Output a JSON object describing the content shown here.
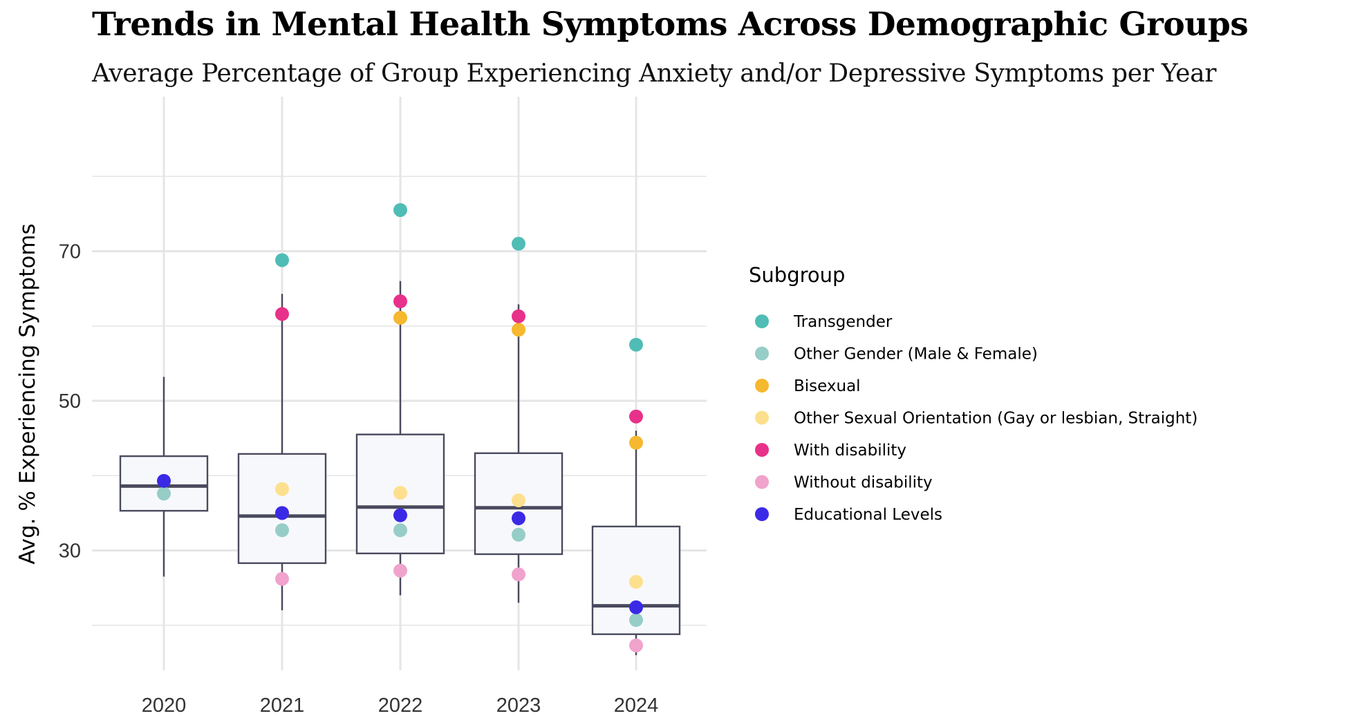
{
  "chart_data": {
    "type": "box",
    "title": "Trends in Mental Health Symptoms Across Demographic Groups",
    "subtitle": "Average Percentage of Group Experiencing Anxiety and/or Depressive Symptoms per Year",
    "xlabel": "",
    "ylabel": "Avg. % Experiencing Symptoms",
    "categories": [
      "2020",
      "2021",
      "2022",
      "2023",
      "2024"
    ],
    "ylim": [
      12.5,
      85
    ],
    "yticks": [
      30,
      50,
      70
    ],
    "grid": true,
    "legend": {
      "title": "Subgroup",
      "position": "right"
    },
    "boxes": [
      {
        "x": "2020",
        "whisker_low": 26.5,
        "q1": 35.3,
        "median": 38.6,
        "q3": 42.6,
        "whisker_high": 53.2
      },
      {
        "x": "2021",
        "whisker_low": 22.0,
        "q1": 28.3,
        "median": 34.6,
        "q3": 42.9,
        "whisker_high": 64.3
      },
      {
        "x": "2022",
        "whisker_low": 24.0,
        "q1": 29.6,
        "median": 35.8,
        "q3": 45.5,
        "whisker_high": 66.0
      },
      {
        "x": "2023",
        "whisker_low": 23.0,
        "q1": 29.5,
        "median": 35.7,
        "q3": 43.0,
        "whisker_high": 62.9
      },
      {
        "x": "2024",
        "whisker_low": 16.0,
        "q1": 18.8,
        "median": 22.6,
        "q3": 33.2,
        "whisker_high": 46.0
      }
    ],
    "series": [
      {
        "name": "Transgender",
        "color": "#4fbdb5",
        "values": [
          null,
          68.8,
          75.5,
          71.0,
          57.5
        ]
      },
      {
        "name": "Other Gender (Male & Female)",
        "color": "#96cdc7",
        "values": [
          37.6,
          32.7,
          32.7,
          32.1,
          20.7
        ]
      },
      {
        "name": "Bisexual",
        "color": "#f5b82e",
        "values": [
          null,
          null,
          61.1,
          59.5,
          44.4
        ]
      },
      {
        "name": "Other Sexual Orientation (Gay or lesbian, Straight)",
        "color": "#fde08e",
        "values": [
          null,
          38.2,
          37.7,
          36.7,
          25.8
        ]
      },
      {
        "name": "With disability",
        "color": "#e8318a",
        "values": [
          null,
          61.6,
          63.3,
          61.3,
          47.9
        ]
      },
      {
        "name": "Without disability",
        "color": "#f0a3cc",
        "values": [
          null,
          26.2,
          27.3,
          26.8,
          17.3
        ]
      },
      {
        "name": "Educational Levels",
        "color": "#3a2ae6",
        "values": [
          39.3,
          35.0,
          34.7,
          34.3,
          22.4
        ]
      }
    ],
    "colors": {
      "box_stroke": "#4a4a5e",
      "box_fill": "#f7f8fb",
      "grid": "#e5e5e5"
    }
  }
}
